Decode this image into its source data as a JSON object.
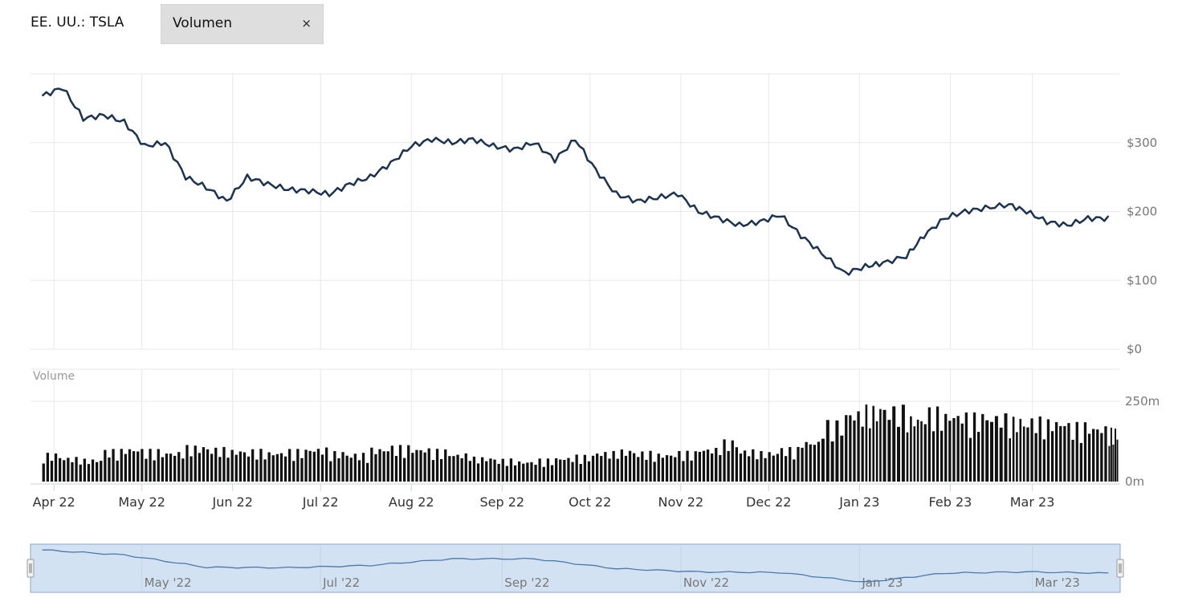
{
  "header": {
    "symbol": "EE. UU.: TSLA",
    "indicator_chip": {
      "label": "Volumen",
      "close_glyph": "×"
    }
  },
  "colors": {
    "price_line": "#1b3350",
    "volume_bar": "#111111",
    "grid": "#e8e8e8",
    "navigator_fill": "#d3e2f3",
    "navigator_line": "#4b78ad",
    "navigator_border": "#8aa9cf"
  },
  "chart_data": [
    {
      "type": "line",
      "panel": "price",
      "y_ticks": [
        "$0",
        "$100",
        "$200",
        "$300"
      ],
      "ylim": [
        0,
        400
      ],
      "x_ticks": [
        "Apr 22",
        "May 22",
        "Jun 22",
        "Jul 22",
        "Aug 22",
        "Sep 22",
        "Oct 22",
        "Nov 22",
        "Dec 22",
        "Jan 23",
        "Feb 23",
        "Mar 23"
      ],
      "grid": true,
      "legend": "none",
      "series": [
        {
          "x": [
            "2022-03-28",
            "2022-04-04",
            "2022-04-11",
            "2022-04-18",
            "2022-04-25",
            "2022-05-02",
            "2022-05-09",
            "2022-05-16",
            "2022-05-23",
            "2022-05-30",
            "2022-06-06",
            "2022-06-13",
            "2022-06-20",
            "2022-06-27",
            "2022-07-04",
            "2022-07-11",
            "2022-07-18",
            "2022-07-25",
            "2022-08-01",
            "2022-08-08",
            "2022-08-15",
            "2022-08-22",
            "2022-08-29",
            "2022-09-05",
            "2022-09-12",
            "2022-09-19",
            "2022-09-26",
            "2022-10-03",
            "2022-10-10",
            "2022-10-17",
            "2022-10-24",
            "2022-10-31",
            "2022-11-07",
            "2022-11-14",
            "2022-11-21",
            "2022-11-28",
            "2022-12-05",
            "2022-12-12",
            "2022-12-19",
            "2022-12-27",
            "2023-01-03",
            "2023-01-09",
            "2023-01-17",
            "2023-01-23",
            "2023-01-30",
            "2023-02-06",
            "2023-02-13",
            "2023-02-21",
            "2023-02-27",
            "2023-03-06",
            "2023-03-13",
            "2023-03-20",
            "2023-03-27"
          ],
          "values": [
            368,
            380,
            335,
            340,
            330,
            295,
            300,
            250,
            235,
            215,
            250,
            240,
            232,
            230,
            225,
            240,
            250,
            270,
            295,
            305,
            300,
            305,
            295,
            290,
            300,
            275,
            305,
            260,
            225,
            215,
            220,
            226,
            200,
            190,
            180,
            185,
            195,
            165,
            140,
            110,
            120,
            125,
            135,
            165,
            190,
            200,
            205,
            210,
            200,
            185,
            180,
            190,
            190
          ]
        }
      ]
    },
    {
      "type": "bar",
      "panel": "volume",
      "title": "Volume",
      "y_ticks": [
        "0m",
        "250m"
      ],
      "ylim": [
        0,
        350
      ],
      "series": [
        {
          "x": [
            "2022-03-28",
            "2022-04-04",
            "2022-04-11",
            "2022-04-18",
            "2022-04-25",
            "2022-05-02",
            "2022-05-09",
            "2022-05-16",
            "2022-05-23",
            "2022-05-30",
            "2022-06-06",
            "2022-06-13",
            "2022-06-20",
            "2022-06-27",
            "2022-07-04",
            "2022-07-11",
            "2022-07-18",
            "2022-07-25",
            "2022-08-01",
            "2022-08-08",
            "2022-08-15",
            "2022-08-22",
            "2022-08-29",
            "2022-09-05",
            "2022-09-12",
            "2022-09-19",
            "2022-09-26",
            "2022-10-03",
            "2022-10-10",
            "2022-10-17",
            "2022-10-24",
            "2022-10-31",
            "2022-11-07",
            "2022-11-14",
            "2022-11-21",
            "2022-11-28",
            "2022-12-05",
            "2022-12-12",
            "2022-12-19",
            "2022-12-27",
            "2023-01-03",
            "2023-01-09",
            "2023-01-17",
            "2023-01-23",
            "2023-01-30",
            "2023-02-06",
            "2023-02-13",
            "2023-02-21",
            "2023-02-27",
            "2023-03-06",
            "2023-03-13",
            "2023-03-20",
            "2023-03-27"
          ],
          "values": [
            75,
            65,
            60,
            85,
            90,
            85,
            80,
            95,
            90,
            85,
            85,
            80,
            85,
            90,
            80,
            75,
            90,
            95,
            90,
            85,
            75,
            65,
            60,
            55,
            60,
            65,
            70,
            80,
            85,
            80,
            75,
            80,
            90,
            110,
            85,
            80,
            90,
            110,
            160,
            190,
            200,
            200,
            175,
            195,
            185,
            180,
            180,
            170,
            170,
            165,
            155,
            150,
            140
          ]
        }
      ]
    },
    {
      "type": "area",
      "panel": "navigator",
      "x_ticks": [
        "May '22",
        "Jul '22",
        "Sep '22",
        "Nov '22",
        "Jan '23",
        "Mar '23"
      ],
      "series": [
        {
          "x": [
            "2022-03-28",
            "2022-04-25",
            "2022-05-23",
            "2022-06-20",
            "2022-07-18",
            "2022-08-15",
            "2022-09-12",
            "2022-10-10",
            "2022-11-07",
            "2022-12-05",
            "2023-01-03",
            "2023-01-30",
            "2023-02-27",
            "2023-03-27"
          ],
          "values": [
            368,
            330,
            235,
            232,
            250,
            300,
            300,
            225,
            200,
            195,
            120,
            190,
            200,
            190
          ]
        }
      ]
    }
  ]
}
